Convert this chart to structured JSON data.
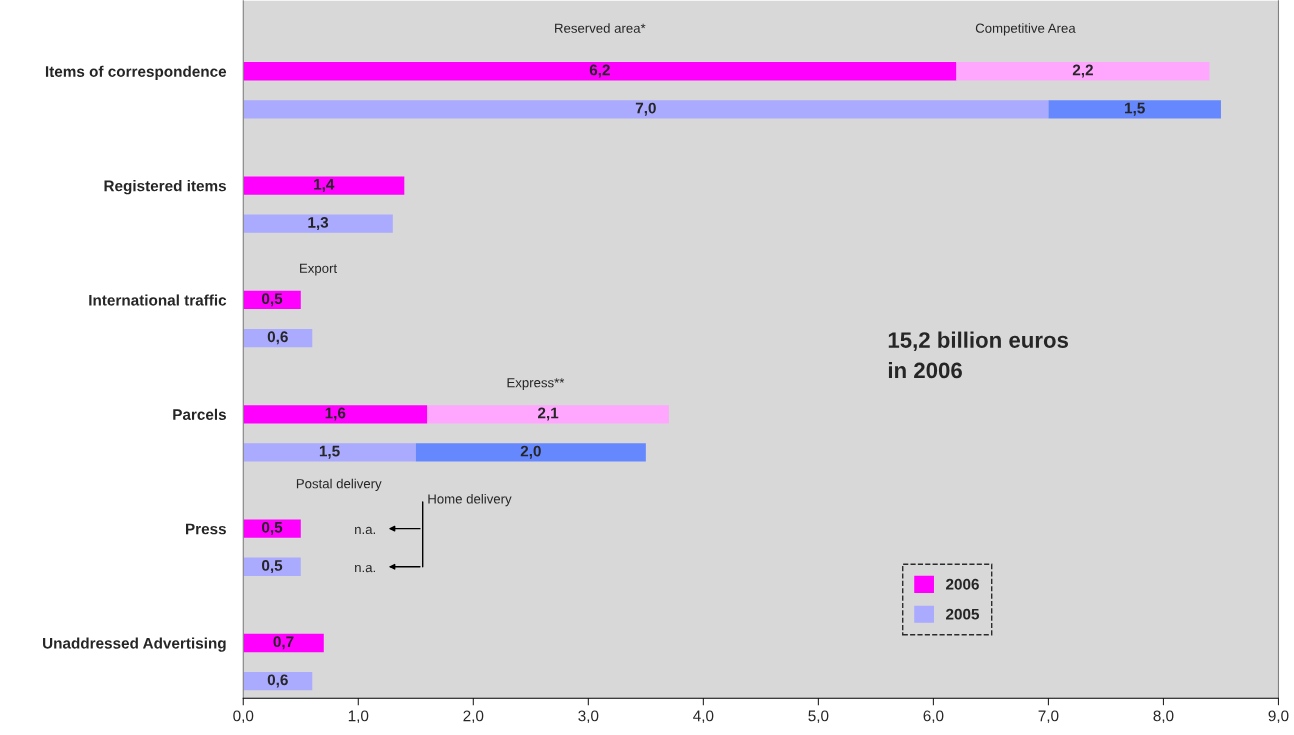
{
  "chart_data": {
    "type": "bar",
    "orientation": "horizontal",
    "stacked": true,
    "grid": false,
    "legend": "bottom",
    "categories": [
      "Items of correspondence",
      null,
      "Registered items",
      null,
      "International traffic",
      null,
      "Parcels",
      null,
      "Press",
      null,
      "Unaddressed Advertising",
      null
    ],
    "series": [
      {
        "name": "2006",
        "color": "#ff00ff",
        "values": [
          6.2,
          null,
          1.4,
          null,
          0.5,
          null,
          1.6,
          null,
          0.5,
          null,
          0.7,
          null
        ],
        "value_labels": [
          "6,2",
          null,
          "1,4",
          null,
          "0,5",
          null,
          "1,6",
          null,
          "0,5",
          null,
          "0,7",
          null
        ]
      },
      {
        "name": "2005",
        "color": "#aaaaff",
        "values": [
          null,
          7.0,
          null,
          1.3,
          null,
          0.6,
          null,
          1.5,
          null,
          0.5,
          null,
          0.6
        ],
        "value_labels": [
          null,
          "7,0",
          null,
          "1,3",
          null,
          "0,6",
          null,
          "1,5",
          null,
          "0,5",
          null,
          "0,6"
        ]
      },
      {
        "color": "#ffa6ff",
        "values": [
          2.2,
          null,
          null,
          null,
          null,
          null,
          2.1,
          null,
          null,
          null,
          null,
          null
        ],
        "value_labels": [
          "2,2",
          null,
          null,
          null,
          null,
          null,
          "2,1",
          null,
          null,
          null,
          null,
          null
        ]
      },
      {
        "color": "#6688ff",
        "values": [
          null,
          1.5,
          null,
          null,
          null,
          null,
          null,
          2.0,
          null,
          null,
          null,
          null
        ],
        "value_labels": [
          null,
          "1,5",
          null,
          null,
          null,
          null,
          null,
          "2,0",
          null,
          null,
          null,
          null
        ]
      }
    ],
    "xlim": [
      0,
      9
    ],
    "xticks": [
      {
        "value": 0,
        "label": "0,0"
      },
      {
        "value": 1,
        "label": "1,0"
      },
      {
        "value": 2,
        "label": "2,0"
      },
      {
        "value": 3,
        "label": "3,0"
      },
      {
        "value": 4,
        "label": "4,0"
      },
      {
        "value": 5,
        "label": "5,0"
      },
      {
        "value": 6,
        "label": "6,0"
      },
      {
        "value": 7,
        "label": "7,0"
      },
      {
        "value": 8,
        "label": "8,0"
      },
      {
        "value": 9,
        "label": "9,0"
      }
    ],
    "annotations": [
      "Reserved area*",
      "Competitive Area",
      "Export",
      "Express**",
      "Postal delivery",
      "Home delivery",
      "n.a.",
      "n.a.",
      "15,2 billion euros\nin 2006"
    ]
  }
}
